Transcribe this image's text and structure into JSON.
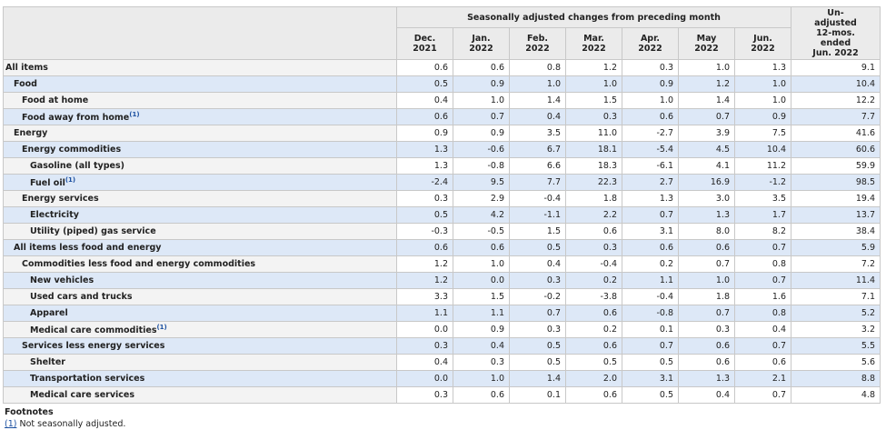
{
  "table": {
    "group_header": "Seasonally adjusted changes from preceding month",
    "columns": [
      [
        "Dec.",
        "2021"
      ],
      [
        "Jan.",
        "2022"
      ],
      [
        "Feb.",
        "2022"
      ],
      [
        "Mar.",
        "2022"
      ],
      [
        "Apr.",
        "2022"
      ],
      [
        "May",
        "2022"
      ],
      [
        "Jun.",
        "2022"
      ]
    ],
    "last_column": [
      "Un-",
      "adjusted",
      "12-mos.",
      "ended",
      "Jun. 2022"
    ],
    "rows": [
      {
        "label": "All items",
        "values": [
          "0.6",
          "0.6",
          "0.8",
          "1.2",
          "0.3",
          "1.0",
          "1.3",
          "9.1"
        ]
      },
      {
        "label": "Food",
        "values": [
          "0.5",
          "0.9",
          "1.0",
          "1.0",
          "0.9",
          "1.2",
          "1.0",
          "10.4"
        ]
      },
      {
        "label": "Food at home",
        "values": [
          "0.4",
          "1.0",
          "1.4",
          "1.5",
          "1.0",
          "1.4",
          "1.0",
          "12.2"
        ]
      },
      {
        "label": "Food away from home",
        "note": "(1)",
        "values": [
          "0.6",
          "0.7",
          "0.4",
          "0.3",
          "0.6",
          "0.7",
          "0.9",
          "7.7"
        ]
      },
      {
        "label": "Energy",
        "values": [
          "0.9",
          "0.9",
          "3.5",
          "11.0",
          "-2.7",
          "3.9",
          "7.5",
          "41.6"
        ]
      },
      {
        "label": "Energy commodities",
        "values": [
          "1.3",
          "-0.6",
          "6.7",
          "18.1",
          "-5.4",
          "4.5",
          "10.4",
          "60.6"
        ]
      },
      {
        "label": "Gasoline (all types)",
        "values": [
          "1.3",
          "-0.8",
          "6.6",
          "18.3",
          "-6.1",
          "4.1",
          "11.2",
          "59.9"
        ]
      },
      {
        "label": "Fuel oil",
        "note": "(1)",
        "values": [
          "-2.4",
          "9.5",
          "7.7",
          "22.3",
          "2.7",
          "16.9",
          "-1.2",
          "98.5"
        ]
      },
      {
        "label": "Energy services",
        "values": [
          "0.3",
          "2.9",
          "-0.4",
          "1.8",
          "1.3",
          "3.0",
          "3.5",
          "19.4"
        ]
      },
      {
        "label": "Electricity",
        "values": [
          "0.5",
          "4.2",
          "-1.1",
          "2.2",
          "0.7",
          "1.3",
          "1.7",
          "13.7"
        ]
      },
      {
        "label": "Utility (piped) gas service",
        "values": [
          "-0.3",
          "-0.5",
          "1.5",
          "0.6",
          "3.1",
          "8.0",
          "8.2",
          "38.4"
        ]
      },
      {
        "label": "All items less food and energy",
        "values": [
          "0.6",
          "0.6",
          "0.5",
          "0.3",
          "0.6",
          "0.6",
          "0.7",
          "5.9"
        ]
      },
      {
        "label": "Commodities less food and energy commodities",
        "values": [
          "1.2",
          "1.0",
          "0.4",
          "-0.4",
          "0.2",
          "0.7",
          "0.8",
          "7.2"
        ]
      },
      {
        "label": "New vehicles",
        "values": [
          "1.2",
          "0.0",
          "0.3",
          "0.2",
          "1.1",
          "1.0",
          "0.7",
          "11.4"
        ]
      },
      {
        "label": "Used cars and trucks",
        "values": [
          "3.3",
          "1.5",
          "-0.2",
          "-3.8",
          "-0.4",
          "1.8",
          "1.6",
          "7.1"
        ]
      },
      {
        "label": "Apparel",
        "values": [
          "1.1",
          "1.1",
          "0.7",
          "0.6",
          "-0.8",
          "0.7",
          "0.8",
          "5.2"
        ]
      },
      {
        "label": "Medical care commodities",
        "note": "(1)",
        "values": [
          "0.0",
          "0.9",
          "0.3",
          "0.2",
          "0.1",
          "0.3",
          "0.4",
          "3.2"
        ]
      },
      {
        "label": "Services less energy services",
        "values": [
          "0.3",
          "0.4",
          "0.5",
          "0.6",
          "0.7",
          "0.6",
          "0.7",
          "5.5"
        ]
      },
      {
        "label": "Shelter",
        "values": [
          "0.4",
          "0.3",
          "0.5",
          "0.5",
          "0.5",
          "0.6",
          "0.6",
          "5.6"
        ]
      },
      {
        "label": "Transportation services",
        "values": [
          "0.0",
          "1.0",
          "1.4",
          "2.0",
          "3.1",
          "1.3",
          "2.1",
          "8.8"
        ]
      },
      {
        "label": "Medical care services",
        "values": [
          "0.3",
          "0.6",
          "0.1",
          "0.6",
          "0.5",
          "0.4",
          "0.7",
          "4.8"
        ]
      }
    ]
  },
  "footnotes": {
    "title": "Footnotes",
    "items": [
      {
        "marker": "(1)",
        "text": " Not seasonally adjusted."
      }
    ]
  }
}
